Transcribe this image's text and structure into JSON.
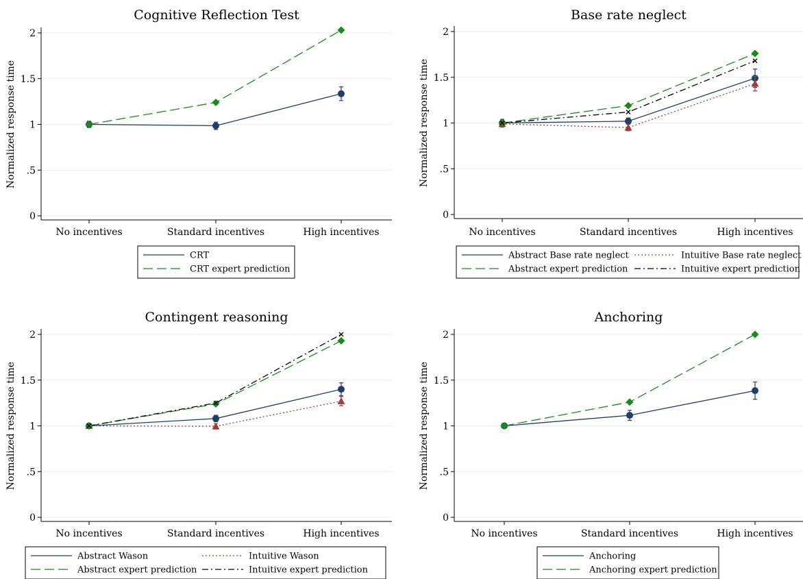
{
  "colors": {
    "observed_navy": "#1f3f66",
    "expert_green": "#1a8a1a",
    "intuitive_red": "#a23a3a",
    "intuitive_expert_black": "#000000",
    "grid": "#ececec",
    "axis": "#000000"
  },
  "chart_data": [
    {
      "type": "line",
      "title": "Cognitive Reflection Test",
      "xlabel": "",
      "ylabel": "Normalized response time",
      "categories": [
        "No incentives",
        "Standard incentives",
        "High incentives"
      ],
      "yticks": [
        "0",
        ".5",
        "1",
        "1.5",
        "2"
      ],
      "ylim": [
        0,
        2
      ],
      "grid": true,
      "legend_position": "bottom",
      "legend_columns": 1,
      "series": [
        {
          "name": "CRT",
          "values": [
            1.0,
            0.985,
            1.335
          ],
          "err": [
            0.035,
            0.04,
            0.075
          ],
          "style": "solid",
          "marker": "circle",
          "color_key": "observed_navy"
        },
        {
          "name": "CRT expert prediction",
          "values": [
            1.0,
            1.24,
            2.03
          ],
          "err": null,
          "style": "longdash",
          "marker": "diamond",
          "color_key": "expert_green"
        }
      ]
    },
    {
      "type": "line",
      "title": "Base rate neglect",
      "xlabel": "",
      "ylabel": "Normalized response time",
      "categories": [
        "No incentives",
        "Standard incentives",
        "High incentives"
      ],
      "yticks": [
        "0",
        ".5",
        "1",
        "1.5",
        "2"
      ],
      "ylim": [
        0,
        2
      ],
      "grid": true,
      "legend_position": "bottom",
      "legend_columns": 2,
      "series": [
        {
          "name": "Abstract Base rate neglect",
          "values": [
            1.0,
            1.02,
            1.49
          ],
          "err": [
            0.04,
            0.035,
            0.1
          ],
          "style": "solid",
          "marker": "circle",
          "color_key": "observed_navy"
        },
        {
          "name": "Intuitive Base rate neglect",
          "values": [
            0.99,
            0.95,
            1.43
          ],
          "err": [
            0.035,
            0.035,
            0.08
          ],
          "style": "dot",
          "marker": "triangle",
          "color_key": "intuitive_red"
        },
        {
          "name": "Abstract expert prediction",
          "values": [
            1.0,
            1.19,
            1.76
          ],
          "err": null,
          "style": "longdash",
          "marker": "diamond",
          "color_key": "expert_green"
        },
        {
          "name": "Intuitive expert prediction",
          "values": [
            1.0,
            1.12,
            1.68
          ],
          "err": null,
          "style": "dashdot",
          "marker": "x",
          "color_key": "intuitive_expert_black"
        }
      ]
    },
    {
      "type": "line",
      "title": "Contingent reasoning",
      "xlabel": "",
      "ylabel": "Normalized response time",
      "categories": [
        "No incentives",
        "Standard incentives",
        "High incentives"
      ],
      "yticks": [
        "0",
        ".5",
        "1",
        "1.5",
        "2"
      ],
      "ylim": [
        0,
        2
      ],
      "grid": true,
      "legend_position": "bottom",
      "legend_columns": 2,
      "series": [
        {
          "name": "Abstract Wason",
          "values": [
            1.0,
            1.08,
            1.4
          ],
          "err": [
            0.025,
            0.035,
            0.07
          ],
          "style": "solid",
          "marker": "circle",
          "color_key": "observed_navy"
        },
        {
          "name": "Intuitive Wason",
          "values": [
            1.0,
            0.995,
            1.27
          ],
          "err": [
            0.025,
            0.03,
            0.05
          ],
          "style": "dot",
          "marker": "triangle",
          "color_key": "intuitive_red"
        },
        {
          "name": "Abstract expert prediction",
          "values": [
            1.0,
            1.24,
            1.93
          ],
          "err": null,
          "style": "longdash",
          "marker": "diamond",
          "color_key": "expert_green"
        },
        {
          "name": "Intuitive expert prediction",
          "values": [
            1.0,
            1.25,
            2.0
          ],
          "err": null,
          "style": "dashdot",
          "marker": "x",
          "color_key": "intuitive_expert_black"
        }
      ]
    },
    {
      "type": "line",
      "title": "Anchoring",
      "xlabel": "",
      "ylabel": "Normalized response time",
      "categories": [
        "No incentives",
        "Standard incentives",
        "High incentives"
      ],
      "yticks": [
        "0",
        ".5",
        "1",
        "1.5",
        "2"
      ],
      "ylim": [
        0,
        2
      ],
      "grid": true,
      "legend_position": "bottom",
      "legend_columns": 1,
      "series": [
        {
          "name": "Anchoring",
          "values": [
            1.0,
            1.115,
            1.385
          ],
          "err": [
            0.025,
            0.055,
            0.095
          ],
          "style": "solid",
          "marker": "circle",
          "color_key": "observed_navy"
        },
        {
          "name": "Anchoring expert prediction",
          "values": [
            1.0,
            1.26,
            2.0
          ],
          "err": null,
          "style": "longdash",
          "marker": "diamond",
          "color_key": "expert_green"
        }
      ]
    }
  ]
}
